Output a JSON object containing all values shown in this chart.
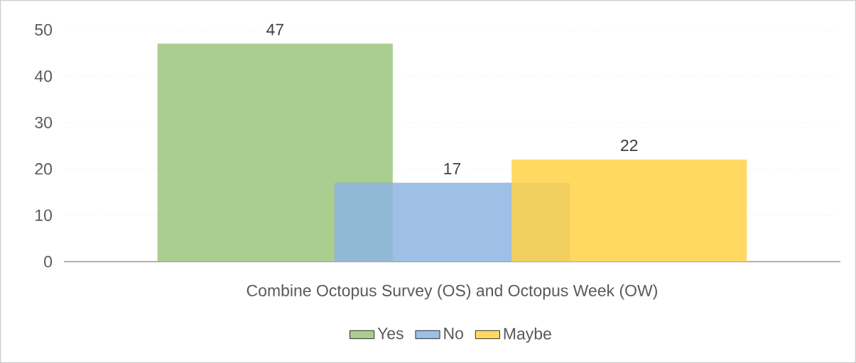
{
  "chart_data": {
    "type": "bar",
    "categories": [
      "Combine Octopus Survey (OS) and Octopus Week (OW)"
    ],
    "series": [
      {
        "name": "Yes",
        "color": "#9bc47c",
        "values": [
          47
        ]
      },
      {
        "name": "No",
        "color": "#8db4e2",
        "values": [
          17
        ]
      },
      {
        "name": "Maybe",
        "color": "#ffd246",
        "values": [
          22
        ]
      }
    ],
    "ylim": [
      0,
      50
    ],
    "yticks": [
      0,
      10,
      20,
      30,
      40,
      50
    ],
    "grid": "y",
    "legend": "bottom",
    "data_labels": true
  }
}
